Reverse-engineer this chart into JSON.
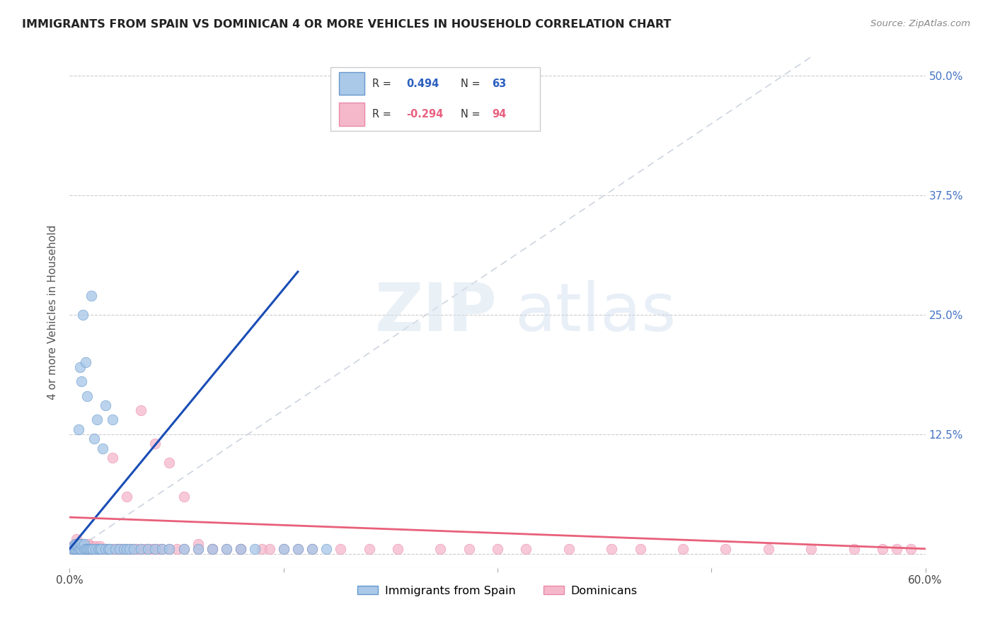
{
  "title": "IMMIGRANTS FROM SPAIN VS DOMINICAN 4 OR MORE VEHICLES IN HOUSEHOLD CORRELATION CHART",
  "source": "Source: ZipAtlas.com",
  "ylabel": "4 or more Vehicles in Household",
  "xlim": [
    0.0,
    0.6
  ],
  "ylim": [
    -0.015,
    0.52
  ],
  "xtick_positions": [
    0.0,
    0.15,
    0.3,
    0.45,
    0.6
  ],
  "xticklabels": [
    "0.0%",
    "",
    "",
    "",
    "60.0%"
  ],
  "ytick_positions": [
    0.0,
    0.125,
    0.25,
    0.375,
    0.5
  ],
  "right_yticklabels": [
    "",
    "12.5%",
    "25.0%",
    "37.5%",
    "50.0%"
  ],
  "spain_color": "#aac8e8",
  "spain_edge": "#6699cc",
  "dominican_color": "#f5b8cb",
  "dominican_edge": "#e88aa8",
  "spain_line_color": "#1a4db5",
  "dominican_line_color": "#e8607a",
  "diag_line_color": "#c8d0dc",
  "R_spain": "0.494",
  "N_spain": "63",
  "R_dominican": "-0.294",
  "N_dominican": "94",
  "legend_label_spain": "Immigrants from Spain",
  "legend_label_dominican": "Dominicans",
  "spain_scatter_x": [
    0.002,
    0.003,
    0.003,
    0.004,
    0.004,
    0.005,
    0.005,
    0.005,
    0.006,
    0.006,
    0.006,
    0.007,
    0.007,
    0.007,
    0.008,
    0.008,
    0.008,
    0.009,
    0.009,
    0.01,
    0.01,
    0.011,
    0.011,
    0.012,
    0.012,
    0.013,
    0.014,
    0.015,
    0.015,
    0.016,
    0.017,
    0.018,
    0.019,
    0.02,
    0.021,
    0.022,
    0.023,
    0.025,
    0.025,
    0.027,
    0.028,
    0.03,
    0.032,
    0.035,
    0.038,
    0.04,
    0.042,
    0.045,
    0.05,
    0.055,
    0.06,
    0.065,
    0.07,
    0.08,
    0.09,
    0.1,
    0.11,
    0.12,
    0.13,
    0.15,
    0.16,
    0.17,
    0.18
  ],
  "spain_scatter_y": [
    0.005,
    0.005,
    0.008,
    0.005,
    0.01,
    0.005,
    0.008,
    0.01,
    0.005,
    0.008,
    0.13,
    0.005,
    0.01,
    0.195,
    0.005,
    0.01,
    0.18,
    0.008,
    0.25,
    0.005,
    0.01,
    0.005,
    0.2,
    0.005,
    0.165,
    0.005,
    0.005,
    0.005,
    0.27,
    0.005,
    0.12,
    0.005,
    0.14,
    0.005,
    0.005,
    0.005,
    0.11,
    0.005,
    0.155,
    0.005,
    0.005,
    0.14,
    0.005,
    0.005,
    0.005,
    0.005,
    0.005,
    0.005,
    0.005,
    0.005,
    0.005,
    0.005,
    0.005,
    0.005,
    0.005,
    0.005,
    0.005,
    0.005,
    0.005,
    0.005,
    0.005,
    0.005,
    0.005
  ],
  "dominican_scatter_x": [
    0.002,
    0.002,
    0.003,
    0.003,
    0.004,
    0.004,
    0.005,
    0.005,
    0.005,
    0.006,
    0.006,
    0.007,
    0.007,
    0.008,
    0.008,
    0.009,
    0.009,
    0.01,
    0.01,
    0.011,
    0.011,
    0.012,
    0.013,
    0.013,
    0.014,
    0.015,
    0.015,
    0.016,
    0.017,
    0.018,
    0.019,
    0.02,
    0.021,
    0.022,
    0.023,
    0.025,
    0.026,
    0.028,
    0.03,
    0.032,
    0.034,
    0.035,
    0.037,
    0.038,
    0.04,
    0.042,
    0.045,
    0.047,
    0.05,
    0.053,
    0.055,
    0.058,
    0.06,
    0.063,
    0.065,
    0.07,
    0.075,
    0.08,
    0.09,
    0.1,
    0.11,
    0.12,
    0.135,
    0.15,
    0.17,
    0.19,
    0.21,
    0.23,
    0.26,
    0.28,
    0.3,
    0.32,
    0.35,
    0.38,
    0.4,
    0.43,
    0.46,
    0.49,
    0.52,
    0.55,
    0.57,
    0.58,
    0.59,
    0.03,
    0.04,
    0.05,
    0.06,
    0.07,
    0.08,
    0.09,
    0.1,
    0.12,
    0.14,
    0.16
  ],
  "dominican_scatter_y": [
    0.005,
    0.008,
    0.005,
    0.008,
    0.005,
    0.01,
    0.005,
    0.008,
    0.015,
    0.005,
    0.01,
    0.005,
    0.008,
    0.005,
    0.01,
    0.005,
    0.008,
    0.005,
    0.01,
    0.005,
    0.008,
    0.005,
    0.005,
    0.01,
    0.005,
    0.005,
    0.008,
    0.005,
    0.005,
    0.008,
    0.005,
    0.005,
    0.008,
    0.005,
    0.005,
    0.005,
    0.005,
    0.005,
    0.005,
    0.005,
    0.005,
    0.005,
    0.005,
    0.005,
    0.005,
    0.005,
    0.005,
    0.005,
    0.005,
    0.005,
    0.005,
    0.005,
    0.005,
    0.005,
    0.005,
    0.005,
    0.005,
    0.005,
    0.005,
    0.005,
    0.005,
    0.005,
    0.005,
    0.005,
    0.005,
    0.005,
    0.005,
    0.005,
    0.005,
    0.005,
    0.005,
    0.005,
    0.005,
    0.005,
    0.005,
    0.005,
    0.005,
    0.005,
    0.005,
    0.005,
    0.005,
    0.005,
    0.005,
    0.1,
    0.06,
    0.15,
    0.115,
    0.095,
    0.06,
    0.01,
    0.005,
    0.005,
    0.005,
    0.005
  ]
}
